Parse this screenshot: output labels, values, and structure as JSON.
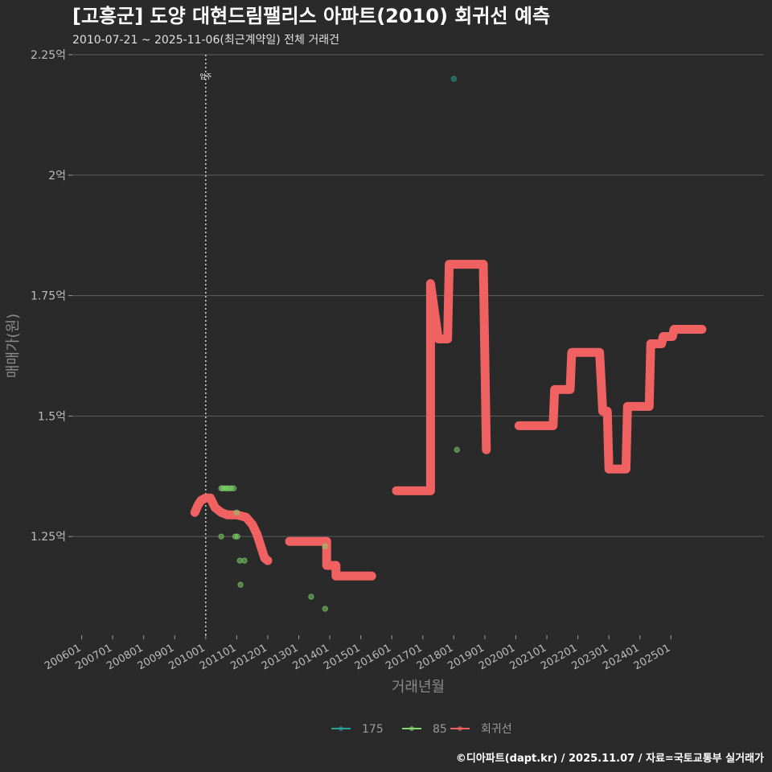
{
  "chart_data": {
    "type": "line",
    "title": "[고흥군] 도양 대현드림팰리스 아파트(2010) 회귀선 예측",
    "subtitle": "2010-07-21 ~ 2025-11-06(최근계약일) 전체 거래건",
    "xlabel": "거래년월",
    "ylabel": "매매가(원)",
    "caption": "©디아파트(dapt.kr) / 2025.11.07 / 자료=국토교통부 실거래가",
    "annotation": {
      "text": "입주",
      "x": 2010.0
    },
    "x_ticks": [
      {
        "x": 2006.0,
        "label": "200601"
      },
      {
        "x": 2007.0,
        "label": "200701"
      },
      {
        "x": 2008.0,
        "label": "200801"
      },
      {
        "x": 2009.0,
        "label": "200901"
      },
      {
        "x": 2010.0,
        "label": "201001"
      },
      {
        "x": 2011.0,
        "label": "201101"
      },
      {
        "x": 2012.0,
        "label": "201201"
      },
      {
        "x": 2013.0,
        "label": "201301"
      },
      {
        "x": 2014.0,
        "label": "201401"
      },
      {
        "x": 2015.0,
        "label": "201501"
      },
      {
        "x": 2016.0,
        "label": "201601"
      },
      {
        "x": 2017.0,
        "label": "201701"
      },
      {
        "x": 2018.0,
        "label": "201801"
      },
      {
        "x": 2019.0,
        "label": "201901"
      },
      {
        "x": 2020.0,
        "label": "202001"
      },
      {
        "x": 2021.0,
        "label": "202101"
      },
      {
        "x": 2022.0,
        "label": "202201"
      },
      {
        "x": 2023.0,
        "label": "202301"
      },
      {
        "x": 2024.0,
        "label": "202401"
      },
      {
        "x": 2025.0,
        "label": "202501"
      }
    ],
    "y_ticks": [
      {
        "y": 1.25,
        "label": "1.25억"
      },
      {
        "y": 1.5,
        "label": "1.5억"
      },
      {
        "y": 1.75,
        "label": "1.75억"
      },
      {
        "y": 2.0,
        "label": "2억"
      },
      {
        "y": 2.25,
        "label": "2.25억"
      }
    ],
    "xlim": [
      2005.7,
      2028.0
    ],
    "ylim": [
      1.045,
      2.25
    ],
    "series": [
      {
        "name": "175",
        "kind": "points",
        "color": "#2aa198",
        "points": [
          [
            2018.0,
            2.2
          ]
        ]
      },
      {
        "name": "85",
        "kind": "points",
        "color": "#7fd86a",
        "points": [
          [
            2010.5,
            1.35
          ],
          [
            2010.55,
            1.35
          ],
          [
            2010.62,
            1.35
          ],
          [
            2010.68,
            1.35
          ],
          [
            2010.75,
            1.35
          ],
          [
            2010.82,
            1.35
          ],
          [
            2010.9,
            1.35
          ],
          [
            2010.5,
            1.25
          ],
          [
            2010.95,
            1.25
          ],
          [
            2011.02,
            1.25
          ],
          [
            2011.1,
            1.2
          ],
          [
            2011.25,
            1.2
          ],
          [
            2011.12,
            1.15
          ],
          [
            2011.0,
            1.3
          ],
          [
            2013.4,
            1.125
          ],
          [
            2013.85,
            1.1
          ],
          [
            2013.85,
            1.23
          ],
          [
            2018.1,
            1.43
          ]
        ]
      },
      {
        "name": "회귀선",
        "kind": "line",
        "color": "#f06262",
        "segments": [
          [
            [
              2009.65,
              1.3
            ],
            [
              2009.75,
              1.315
            ],
            [
              2009.85,
              1.325
            ],
            [
              2010.0,
              1.33
            ],
            [
              2010.15,
              1.33
            ],
            [
              2010.3,
              1.31
            ],
            [
              2010.5,
              1.3
            ],
            [
              2010.7,
              1.295
            ],
            [
              2011.0,
              1.295
            ],
            [
              2011.3,
              1.29
            ],
            [
              2011.5,
              1.275
            ],
            [
              2011.65,
              1.255
            ],
            [
              2011.8,
              1.225
            ],
            [
              2011.9,
              1.205
            ],
            [
              2012.0,
              1.2
            ]
          ],
          [
            [
              2012.7,
              1.24
            ],
            [
              2013.9,
              1.24
            ],
            [
              2013.9,
              1.19
            ],
            [
              2014.2,
              1.19
            ],
            [
              2014.2,
              1.168
            ],
            [
              2015.35,
              1.168
            ]
          ],
          [
            [
              2016.15,
              1.345
            ],
            [
              2017.25,
              1.345
            ],
            [
              2017.25,
              1.775
            ],
            [
              2017.5,
              1.66
            ],
            [
              2017.8,
              1.66
            ],
            [
              2017.85,
              1.815
            ],
            [
              2018.95,
              1.815
            ],
            [
              2019.05,
              1.43
            ]
          ],
          [
            [
              2020.1,
              1.48
            ],
            [
              2021.2,
              1.48
            ],
            [
              2021.25,
              1.555
            ],
            [
              2021.75,
              1.555
            ],
            [
              2021.8,
              1.632
            ],
            [
              2022.7,
              1.632
            ],
            [
              2022.8,
              1.51
            ],
            [
              2022.95,
              1.51
            ],
            [
              2023.0,
              1.39
            ],
            [
              2023.55,
              1.39
            ],
            [
              2023.6,
              1.52
            ],
            [
              2024.3,
              1.52
            ],
            [
              2024.35,
              1.65
            ],
            [
              2024.7,
              1.65
            ],
            [
              2024.75,
              1.665
            ],
            [
              2025.05,
              1.665
            ],
            [
              2025.1,
              1.68
            ],
            [
              2026.0,
              1.68
            ]
          ]
        ]
      }
    ],
    "legend": [
      {
        "name": "175",
        "color": "#2aa198"
      },
      {
        "name": "85",
        "color": "#7fd86a"
      },
      {
        "name": "회귀선",
        "color": "#f06262"
      }
    ]
  }
}
